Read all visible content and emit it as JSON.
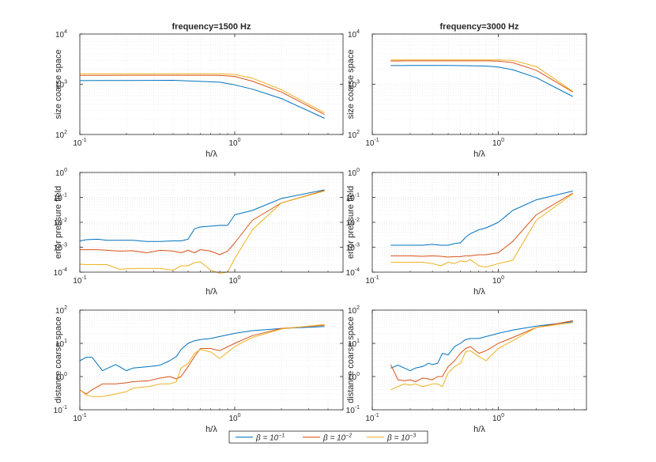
{
  "chart_data": [
    {
      "type": "line",
      "title": "frequency=1500 Hz",
      "xlabel": "h/λ",
      "ylabel": "size coarse space",
      "xscale": "log",
      "yscale": "log",
      "xlim": [
        0.1,
        5.0
      ],
      "ylim": [
        100,
        10000
      ],
      "xticks": [
        {
          "base": "10",
          "exp": "-1"
        },
        {
          "base": "10",
          "exp": "0"
        }
      ],
      "yticks": [
        {
          "base": "10",
          "exp": "2"
        },
        {
          "base": "10",
          "exp": "3"
        },
        {
          "base": "10",
          "exp": "4"
        }
      ],
      "grid": true,
      "x": [
        0.1,
        0.2,
        0.4,
        0.6,
        0.8,
        1.0,
        1.3,
        2.0,
        3.8
      ],
      "series": [
        {
          "name": "β=10⁻¹",
          "values": [
            1180,
            1190,
            1200,
            1140,
            1100,
            970,
            800,
            520,
            210
          ]
        },
        {
          "name": "β=10⁻²",
          "values": [
            1500,
            1510,
            1510,
            1510,
            1500,
            1430,
            1150,
            700,
            250
          ]
        },
        {
          "name": "β=10⁻³",
          "values": [
            1620,
            1620,
            1620,
            1620,
            1620,
            1570,
            1320,
            780,
            270
          ]
        }
      ]
    },
    {
      "type": "line",
      "title": "frequency=3000 Hz",
      "xlabel": "h/λ",
      "ylabel": "size coarse space",
      "xscale": "log",
      "yscale": "log",
      "xlim": [
        0.1,
        5.0
      ],
      "ylim": [
        100,
        10000
      ],
      "xticks": [
        {
          "base": "10",
          "exp": "-1"
        },
        {
          "base": "10",
          "exp": "0"
        }
      ],
      "yticks": [
        {
          "base": "10",
          "exp": "2"
        },
        {
          "base": "10",
          "exp": "3"
        },
        {
          "base": "10",
          "exp": "4"
        }
      ],
      "grid": true,
      "x": [
        0.14,
        0.2,
        0.4,
        0.6,
        0.8,
        1.0,
        1.3,
        2.0,
        3.9
      ],
      "series": [
        {
          "name": "β=10⁻¹",
          "values": [
            2350,
            2360,
            2360,
            2340,
            2300,
            2200,
            1950,
            1350,
            570
          ]
        },
        {
          "name": "β=10⁻²",
          "values": [
            2900,
            2920,
            2920,
            2920,
            2920,
            2880,
            2700,
            1900,
            700
          ]
        },
        {
          "name": "β=10⁻³",
          "values": [
            3050,
            3060,
            3060,
            3060,
            3060,
            3060,
            3000,
            2250,
            720
          ]
        }
      ]
    },
    {
      "type": "line",
      "title": "",
      "xlabel": "h/λ",
      "ylabel": "error pressure field",
      "xscale": "log",
      "yscale": "log",
      "xlim": [
        0.1,
        5.0
      ],
      "ylim": [
        0.0001,
        1
      ],
      "xticks": [
        {
          "base": "10",
          "exp": "-1"
        },
        {
          "base": "10",
          "exp": "0"
        }
      ],
      "yticks": [
        {
          "base": "10",
          "exp": "-4"
        },
        {
          "base": "10",
          "exp": "-3"
        },
        {
          "base": "10",
          "exp": "-2"
        },
        {
          "base": "10",
          "exp": "-1"
        },
        {
          "base": "10",
          "exp": "0"
        }
      ],
      "grid": true,
      "x": [
        0.1,
        0.11,
        0.13,
        0.15,
        0.18,
        0.22,
        0.27,
        0.33,
        0.4,
        0.45,
        0.5,
        0.55,
        0.6,
        0.7,
        0.8,
        0.9,
        1.0,
        1.3,
        2.0,
        3.8
      ],
      "series": [
        {
          "name": "β=10⁻¹",
          "values": [
            0.0018,
            0.002,
            0.0021,
            0.0019,
            0.0019,
            0.0019,
            0.0017,
            0.0017,
            0.0018,
            0.0018,
            0.0021,
            0.0055,
            0.0065,
            0.007,
            0.0075,
            0.0075,
            0.02,
            0.03,
            0.09,
            0.2
          ]
        },
        {
          "name": "β=10⁻²",
          "values": [
            0.0008,
            0.0008,
            0.0008,
            0.00075,
            0.0007,
            0.00072,
            0.0006,
            0.00075,
            0.0007,
            0.0006,
            0.00075,
            0.0006,
            0.0008,
            0.0007,
            0.0005,
            0.0007,
            0.0015,
            0.012,
            0.06,
            0.19
          ]
        },
        {
          "name": "β=10⁻³",
          "values": [
            0.00021,
            0.0002,
            0.0002,
            0.0002,
            0.00013,
            0.00014,
            0.00014,
            0.00014,
            0.00012,
            0.00018,
            0.00018,
            0.00024,
            0.00026,
            0.00012,
            9e-05,
            0.0001,
            0.00035,
            0.005,
            0.06,
            0.18
          ]
        }
      ]
    },
    {
      "type": "line",
      "title": "",
      "xlabel": "h/λ",
      "ylabel": "error pressure field",
      "xscale": "log",
      "yscale": "log",
      "xlim": [
        0.1,
        5.0
      ],
      "ylim": [
        0.0001,
        1
      ],
      "xticks": [
        {
          "base": "10",
          "exp": "-1"
        },
        {
          "base": "10",
          "exp": "0"
        }
      ],
      "yticks": [
        {
          "base": "10",
          "exp": "-4"
        },
        {
          "base": "10",
          "exp": "-3"
        },
        {
          "base": "10",
          "exp": "-2"
        },
        {
          "base": "10",
          "exp": "-1"
        },
        {
          "base": "10",
          "exp": "0"
        }
      ],
      "grid": true,
      "x": [
        0.14,
        0.16,
        0.2,
        0.25,
        0.3,
        0.35,
        0.4,
        0.45,
        0.5,
        0.55,
        0.6,
        0.7,
        0.8,
        1.0,
        1.3,
        2.0,
        3.9
      ],
      "series": [
        {
          "name": "β=10⁻¹",
          "values": [
            0.0012,
            0.0012,
            0.0012,
            0.0012,
            0.0013,
            0.0012,
            0.0012,
            0.0014,
            0.0015,
            0.0025,
            0.0035,
            0.005,
            0.006,
            0.01,
            0.03,
            0.08,
            0.18
          ]
        },
        {
          "name": "β=10⁻²",
          "values": [
            0.00045,
            0.00045,
            0.00045,
            0.00043,
            0.00045,
            0.00043,
            0.0004,
            0.00042,
            0.00042,
            0.00045,
            0.00045,
            0.0005,
            0.0005,
            0.0006,
            0.0017,
            0.02,
            0.15
          ]
        },
        {
          "name": "β=10⁻³",
          "values": [
            0.00025,
            0.00025,
            0.00025,
            0.00025,
            0.00022,
            0.00018,
            0.00025,
            0.00022,
            0.00028,
            0.00026,
            0.00032,
            0.00018,
            0.00016,
            0.00022,
            0.0003,
            0.012,
            0.14
          ]
        }
      ]
    },
    {
      "type": "line",
      "title": "",
      "xlabel": "h/λ",
      "ylabel": "distance coarse space",
      "xscale": "log",
      "yscale": "log",
      "xlim": [
        0.1,
        5.0
      ],
      "ylim": [
        0.1,
        100
      ],
      "xticks": [
        {
          "base": "10",
          "exp": "-1"
        },
        {
          "base": "10",
          "exp": "0"
        }
      ],
      "yticks": [
        {
          "base": "10",
          "exp": "-1"
        },
        {
          "base": "10",
          "exp": "0"
        },
        {
          "base": "10",
          "exp": "1"
        },
        {
          "base": "10",
          "exp": "2"
        }
      ],
      "grid": true,
      "x": [
        0.1,
        0.11,
        0.12,
        0.14,
        0.17,
        0.2,
        0.22,
        0.28,
        0.33,
        0.38,
        0.42,
        0.45,
        0.5,
        0.55,
        0.6,
        0.7,
        0.8,
        1.0,
        1.3,
        2.0,
        3.8
      ],
      "series": [
        {
          "name": "β=10⁻¹",
          "values": [
            3.0,
            3.8,
            3.8,
            1.5,
            2.3,
            1.5,
            1.8,
            2.0,
            2.2,
            3.0,
            4.0,
            6.5,
            10.0,
            12.0,
            13.0,
            14.0,
            16.0,
            20.0,
            24.0,
            28.0,
            32.0
          ]
        },
        {
          "name": "β=10⁻²",
          "values": [
            0.4,
            0.3,
            0.4,
            0.6,
            0.6,
            0.65,
            0.7,
            0.75,
            0.9,
            1.0,
            0.85,
            1.0,
            2.0,
            4.0,
            7.0,
            7.0,
            6.0,
            10.0,
            17.0,
            28.0,
            35.0
          ]
        },
        {
          "name": "β=10⁻³",
          "values": [
            0.4,
            0.28,
            0.25,
            0.25,
            0.3,
            0.35,
            0.45,
            0.5,
            0.6,
            0.6,
            0.7,
            1.8,
            2.5,
            5.0,
            6.5,
            5.5,
            3.5,
            8.0,
            15.0,
            27.0,
            37.0
          ]
        }
      ]
    },
    {
      "type": "line",
      "title": "",
      "xlabel": "h/λ",
      "ylabel": "distance coarse space",
      "xscale": "log",
      "yscale": "log",
      "xlim": [
        0.1,
        5.0
      ],
      "ylim": [
        0.1,
        100
      ],
      "xticks": [
        {
          "base": "10",
          "exp": "-1"
        },
        {
          "base": "10",
          "exp": "0"
        }
      ],
      "yticks": [
        {
          "base": "10",
          "exp": "-1"
        },
        {
          "base": "10",
          "exp": "0"
        },
        {
          "base": "10",
          "exp": "1"
        },
        {
          "base": "10",
          "exp": "2"
        }
      ],
      "grid": true,
      "x": [
        0.14,
        0.16,
        0.18,
        0.2,
        0.22,
        0.25,
        0.28,
        0.3,
        0.33,
        0.36,
        0.4,
        0.45,
        0.5,
        0.55,
        0.6,
        0.7,
        0.8,
        1.0,
        1.3,
        2.0,
        3.9
      ],
      "series": [
        {
          "name": "β=10⁻¹",
          "values": [
            1.8,
            2.2,
            1.8,
            1.5,
            1.8,
            2.0,
            2.5,
            2.3,
            2.5,
            5.0,
            4.5,
            8.0,
            10.0,
            13.0,
            14.0,
            14.0,
            16.0,
            20.0,
            25.0,
            33.0,
            45.0
          ]
        },
        {
          "name": "β=10⁻²",
          "values": [
            2.3,
            0.8,
            0.75,
            0.8,
            0.7,
            0.9,
            0.85,
            0.8,
            1.0,
            1.0,
            2.0,
            3.0,
            5.0,
            7.0,
            8.0,
            5.0,
            6.0,
            10.0,
            15.0,
            30.0,
            48.0
          ]
        },
        {
          "name": "β=10⁻³",
          "values": [
            0.4,
            0.5,
            0.6,
            0.55,
            0.6,
            0.5,
            0.55,
            0.6,
            0.6,
            0.5,
            1.3,
            2.0,
            2.5,
            5.5,
            6.0,
            4.0,
            3.0,
            7.0,
            12.0,
            30.0,
            42.0
          ]
        }
      ]
    }
  ],
  "legend": {
    "placement": "bottom-center",
    "entries": [
      {
        "base": "β = 10",
        "exp": "−1"
      },
      {
        "base": "β = 10",
        "exp": "−2"
      },
      {
        "base": "β = 10",
        "exp": "−3"
      }
    ]
  },
  "colors": [
    "#0072BD",
    "#D95319",
    "#EDB120"
  ]
}
